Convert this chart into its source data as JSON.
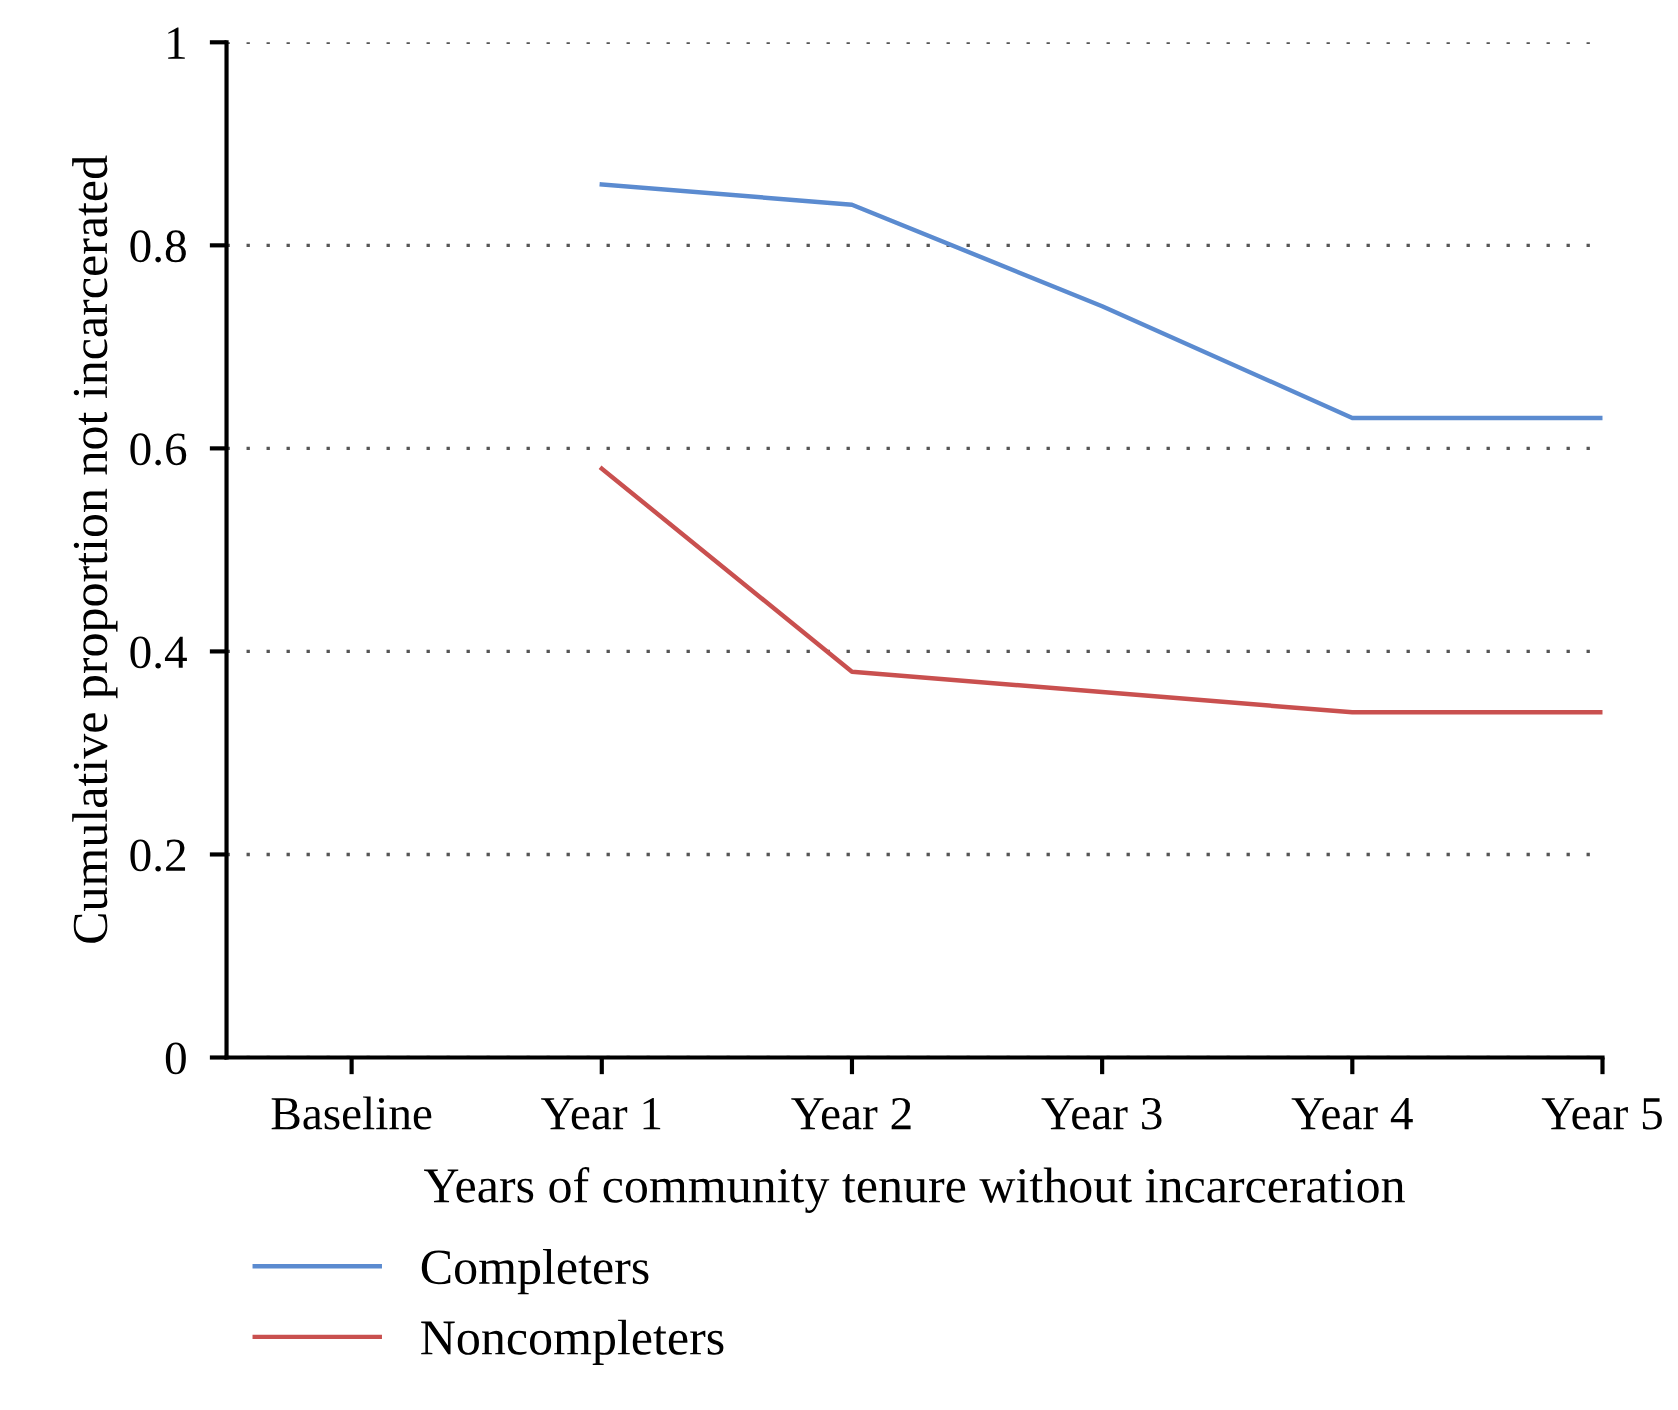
{
  "chart_data": {
    "type": "line",
    "xlabel": "Years of community tenure without incarceration",
    "ylabel": "Cumulative proportion not incarcerated",
    "categories": [
      "Baseline",
      "Year 1",
      "Year 2",
      "Year 3",
      "Year 4",
      "Year 5"
    ],
    "series": [
      {
        "name": "Completers",
        "color": "#5b8bd0",
        "values": [
          null,
          0.86,
          0.84,
          0.74,
          0.63,
          0.63
        ]
      },
      {
        "name": "Noncompleters",
        "color": "#c9504f",
        "values": [
          null,
          0.58,
          0.38,
          0.36,
          0.34,
          0.34
        ]
      }
    ],
    "ylim": [
      0,
      1
    ],
    "yticks": [
      0,
      0.2,
      0.4,
      0.6,
      0.8,
      1
    ],
    "grid": "y",
    "legend": "bottom",
    "marker": "none",
    "line_style": "solid"
  }
}
